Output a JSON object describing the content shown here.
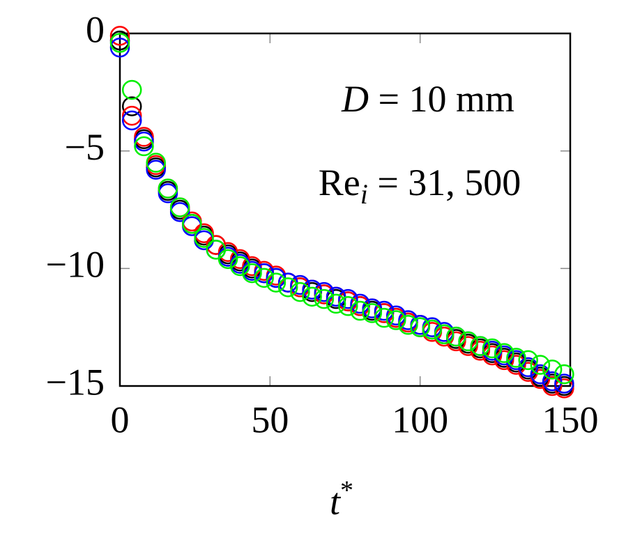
{
  "chart_data": {
    "type": "scatter",
    "xlabel": [
      "t",
      "*"
    ],
    "annotations": [
      [
        "D",
        " = 10 mm"
      ],
      [
        "Re",
        "i",
        " = 31, 500"
      ]
    ],
    "x": [
      0,
      4,
      8,
      12,
      16,
      20,
      24,
      28,
      32,
      36,
      40,
      44,
      48,
      52,
      56,
      60,
      64,
      68,
      72,
      76,
      80,
      84,
      88,
      92,
      96,
      100,
      104,
      108,
      112,
      116,
      120,
      124,
      128,
      132,
      136,
      140,
      144,
      148
    ],
    "series": [
      {
        "color": "#000000",
        "values": [
          -0.3,
          -3.1,
          -4.5,
          -5.7,
          -6.7,
          -7.5,
          -8.1,
          -8.6,
          -9.0,
          -9.4,
          -9.7,
          -10.0,
          -10.2,
          -10.4,
          -10.6,
          -10.8,
          -11.0,
          -11.1,
          -11.3,
          -11.4,
          -11.6,
          -11.8,
          -11.9,
          -12.1,
          -12.3,
          -12.5,
          -12.6,
          -12.8,
          -13.0,
          -13.2,
          -13.4,
          -13.6,
          -13.8,
          -14.0,
          -14.3,
          -14.6,
          -14.9,
          -15.0
        ]
      },
      {
        "color": "#ff0000",
        "values": [
          -0.1,
          -3.5,
          -4.4,
          -5.6,
          -6.6,
          -7.4,
          -8.0,
          -8.5,
          -9.0,
          -9.3,
          -9.6,
          -9.9,
          -10.1,
          -10.3,
          -10.6,
          -10.8,
          -10.9,
          -11.1,
          -11.2,
          -11.4,
          -11.6,
          -11.7,
          -11.9,
          -12.1,
          -12.3,
          -12.4,
          -12.7,
          -12.9,
          -13.1,
          -13.3,
          -13.5,
          -13.7,
          -13.9,
          -14.1,
          -14.4,
          -14.7,
          -15.0,
          -15.1
        ]
      },
      {
        "color": "#0000ff",
        "values": [
          -0.6,
          -3.7,
          -4.6,
          -5.8,
          -6.8,
          -7.6,
          -8.2,
          -8.8,
          -9.2,
          -9.5,
          -9.8,
          -10.1,
          -10.2,
          -10.4,
          -10.6,
          -10.7,
          -10.9,
          -11.0,
          -11.2,
          -11.3,
          -11.5,
          -11.7,
          -11.8,
          -12.0,
          -12.2,
          -12.4,
          -12.5,
          -12.7,
          -12.9,
          -13.1,
          -13.3,
          -13.5,
          -13.7,
          -13.9,
          -14.2,
          -14.5,
          -14.8,
          -14.9
        ]
      },
      {
        "color": "#00ee00",
        "values": [
          -0.4,
          -2.4,
          -4.8,
          -5.5,
          -6.6,
          -7.4,
          -8.1,
          -8.7,
          -9.2,
          -9.6,
          -9.9,
          -10.2,
          -10.4,
          -10.6,
          -10.8,
          -11.0,
          -11.2,
          -11.3,
          -11.5,
          -11.6,
          -11.8,
          -11.9,
          -12.1,
          -12.2,
          -12.4,
          -12.5,
          -12.6,
          -12.8,
          -12.9,
          -13.1,
          -13.3,
          -13.4,
          -13.6,
          -13.8,
          -13.9,
          -14.1,
          -14.3,
          -14.5
        ]
      }
    ],
    "xlim": [
      0,
      150
    ],
    "ylim": [
      -15,
      0
    ],
    "xticks": [
      0,
      50,
      100,
      150
    ],
    "yticks": [
      {
        "value": -15,
        "label": "−15"
      },
      {
        "value": -10,
        "label": "−10"
      },
      {
        "value": -5,
        "label": "−5"
      },
      0
    ]
  }
}
